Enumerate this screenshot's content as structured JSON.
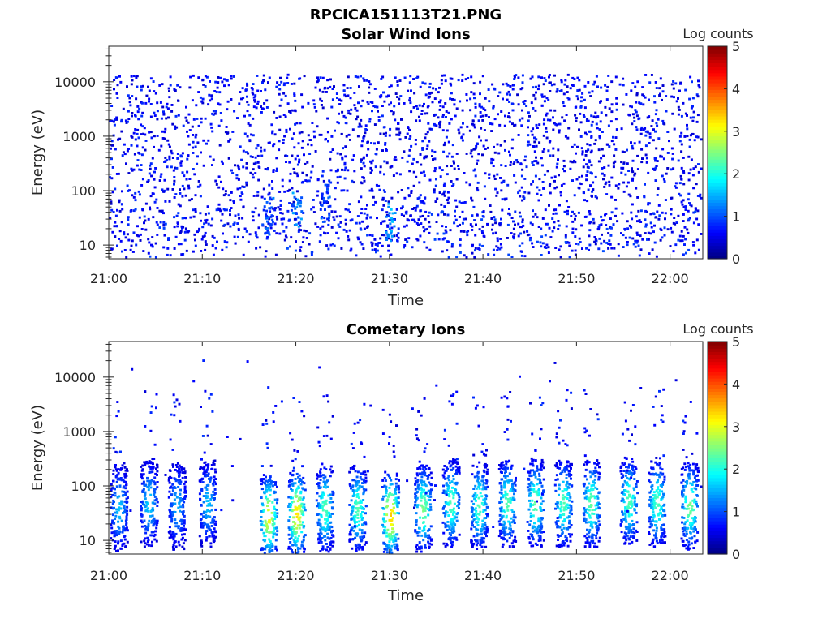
{
  "figure_title": "RPCICA151113T21.PNG",
  "chart_data": [
    {
      "type": "heatmap",
      "title": "Solar Wind Ions",
      "xlabel": "Time",
      "ylabel": "Energy (eV)",
      "colorbar_label": "Log counts",
      "colorbar_ticks": [
        "0",
        "1",
        "2",
        "3",
        "4",
        "5"
      ],
      "colorbar_range": [
        0,
        5
      ],
      "colormap": "jet",
      "x_ticks": [
        "21:00",
        "21:10",
        "21:20",
        "21:30",
        "21:40",
        "21:50",
        "22:00"
      ],
      "x_range_minutes": [
        0,
        63.5
      ],
      "y_ticks": [
        "10",
        "100",
        "1000",
        "10000"
      ],
      "y_scale": "log",
      "ylim": [
        5.6,
        45000
      ],
      "grid": false,
      "description_of_values": "Sparse counts (mostly 0.3–1 log counts) across 10 eV–20 keV; brighter patches near 20–60 eV at about 21:17, 21:20, 21:23 and 21:30",
      "hotspots": [
        {
          "time_min": 17,
          "energy_ev": 35,
          "log_counts": 1.3
        },
        {
          "time_min": 20,
          "energy_ev": 50,
          "log_counts": 1.5
        },
        {
          "time_min": 23,
          "energy_ev": 60,
          "log_counts": 1.2
        },
        {
          "time_min": 30,
          "energy_ev": 28,
          "log_counts": 1.8
        }
      ]
    },
    {
      "type": "heatmap",
      "title": "Cometary Ions",
      "xlabel": "Time",
      "ylabel": "Energy (eV)",
      "colorbar_label": "Log counts",
      "colorbar_ticks": [
        "0",
        "1",
        "2",
        "3",
        "4",
        "5"
      ],
      "colorbar_range": [
        0,
        5
      ],
      "colormap": "jet",
      "x_ticks": [
        "21:00",
        "21:10",
        "21:20",
        "21:30",
        "21:40",
        "21:50",
        "22:00"
      ],
      "x_range_minutes": [
        0,
        63.5
      ],
      "y_ticks": [
        "10",
        "100",
        "1000",
        "10000"
      ],
      "y_scale": "log",
      "ylim": [
        5.6,
        45000
      ],
      "grid": false,
      "description_of_values": "Periodic bursts of cometary ions centred near 30–100 eV, repeating every ~3 minutes from 21:17 to 22:03; weaker bursts 21:00–21:11; peak ~3 log counts near 21:17, 21:20 and 21:30",
      "bursts": [
        {
          "time_min": 1.0,
          "center_ev": 40,
          "peak_log_counts": 1.3
        },
        {
          "time_min": 4.2,
          "center_ev": 50,
          "peak_log_counts": 1.4
        },
        {
          "time_min": 7.2,
          "center_ev": 45,
          "peak_log_counts": 1.2
        },
        {
          "time_min": 10.5,
          "center_ev": 50,
          "peak_log_counts": 1.3
        },
        {
          "time_min": 17.0,
          "center_ev": 28,
          "peak_log_counts": 2.8
        },
        {
          "time_min": 20.0,
          "center_ev": 32,
          "peak_log_counts": 3.0
        },
        {
          "time_min": 23.0,
          "center_ev": 40,
          "peak_log_counts": 2.0
        },
        {
          "time_min": 26.5,
          "center_ev": 40,
          "peak_log_counts": 2.0
        },
        {
          "time_min": 30.0,
          "center_ev": 30,
          "peak_log_counts": 3.1
        },
        {
          "time_min": 33.5,
          "center_ev": 40,
          "peak_log_counts": 2.2
        },
        {
          "time_min": 36.5,
          "center_ev": 50,
          "peak_log_counts": 2.0
        },
        {
          "time_min": 39.5,
          "center_ev": 45,
          "peak_log_counts": 2.0
        },
        {
          "time_min": 42.5,
          "center_ev": 50,
          "peak_log_counts": 2.0
        },
        {
          "time_min": 45.5,
          "center_ev": 50,
          "peak_log_counts": 2.1
        },
        {
          "time_min": 48.5,
          "center_ev": 50,
          "peak_log_counts": 2.0
        },
        {
          "time_min": 51.5,
          "center_ev": 50,
          "peak_log_counts": 2.1
        },
        {
          "time_min": 55.5,
          "center_ev": 55,
          "peak_log_counts": 2.0
        },
        {
          "time_min": 58.5,
          "center_ev": 50,
          "peak_log_counts": 2.0
        },
        {
          "time_min": 62.0,
          "center_ev": 45,
          "peak_log_counts": 2.2
        }
      ]
    }
  ]
}
